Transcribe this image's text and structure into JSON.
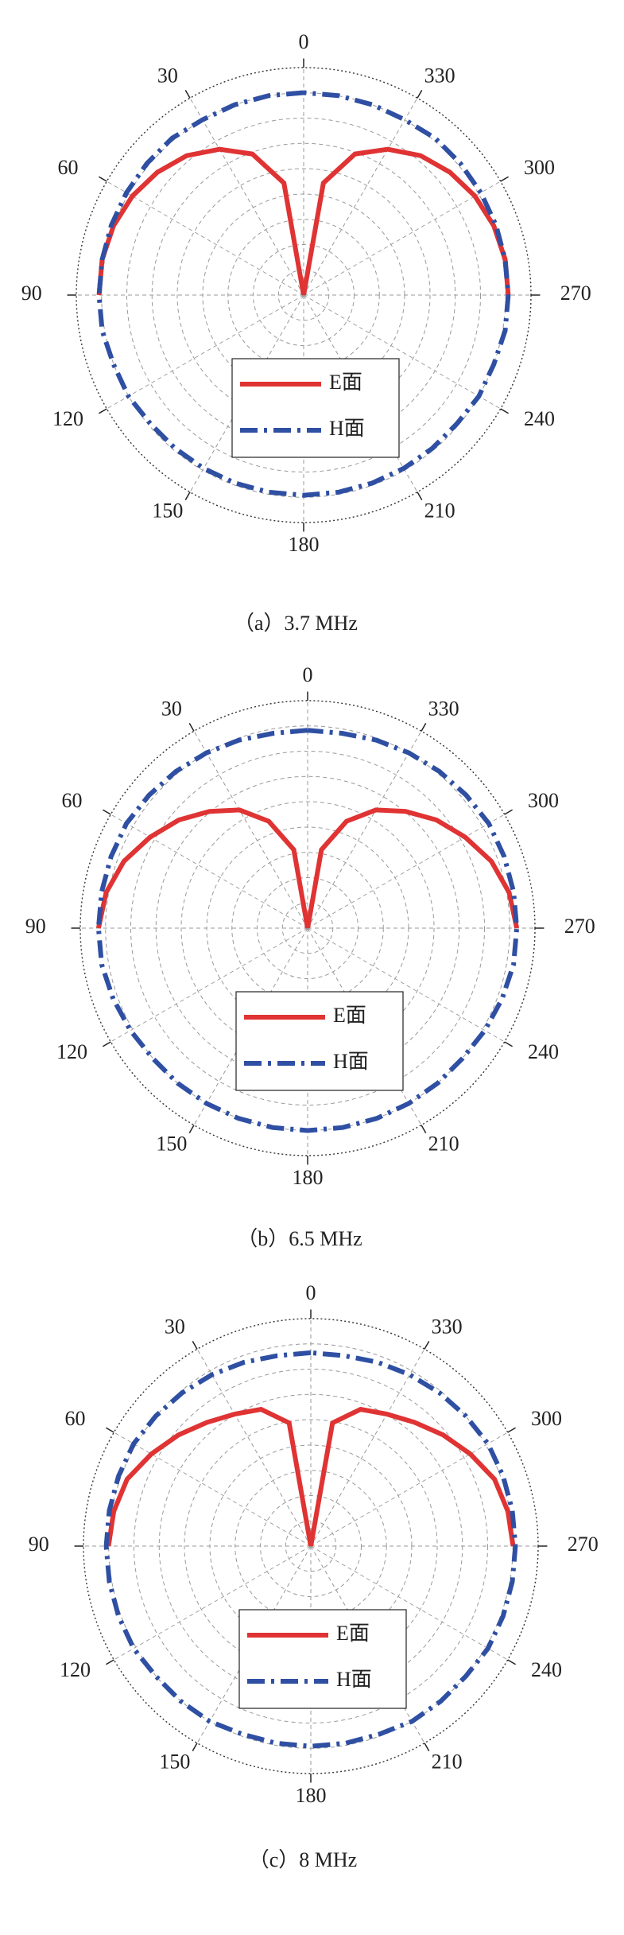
{
  "chart_data": [
    {
      "type": "polar",
      "title": "（a）3.7 MHz",
      "direction": "counterclockwise",
      "zero": "top",
      "legend": "lower center",
      "grid": true,
      "rlim": [
        0,
        1
      ],
      "rticks": [
        0.111,
        0.222,
        0.333,
        0.444,
        0.556,
        0.667,
        0.778,
        0.889,
        1
      ],
      "thetaticks": [
        0,
        30,
        60,
        90,
        120,
        150,
        180,
        210,
        240,
        270,
        300,
        330
      ],
      "x": [
        0,
        10,
        20,
        30,
        40,
        50,
        60,
        70,
        80,
        90,
        100,
        110,
        120,
        130,
        140,
        150,
        160,
        170,
        180,
        190,
        200,
        210,
        220,
        230,
        240,
        250,
        260,
        270,
        280,
        290,
        300,
        310,
        320,
        330,
        340,
        350,
        360
      ],
      "series": [
        {
          "name": "E面",
          "color": "#e03333",
          "linestyle": "solid",
          "values": [
            0,
            0.5,
            0.66,
            0.74,
            0.8,
            0.84,
            0.87,
            0.89,
            0.9,
            0.9,
            null,
            null,
            null,
            null,
            null,
            null,
            null,
            null,
            null,
            null,
            null,
            null,
            null,
            null,
            null,
            null,
            null,
            0.9,
            0.9,
            0.89,
            0.87,
            0.84,
            0.8,
            0.74,
            0.66,
            0.5,
            0
          ]
        },
        {
          "name": "H面",
          "color": "#2f4fa3",
          "linestyle": "dashdot",
          "values": [
            0.89,
            0.89,
            0.89,
            0.89,
            0.9,
            0.9,
            0.9,
            0.9,
            0.9,
            0.9,
            0.9,
            0.89,
            0.89,
            0.88,
            0.88,
            0.88,
            0.88,
            0.88,
            0.88,
            0.88,
            0.88,
            0.88,
            0.88,
            0.88,
            0.89,
            0.89,
            0.9,
            0.9,
            0.9,
            0.9,
            0.9,
            0.9,
            0.9,
            0.89,
            0.89,
            0.89,
            0.89
          ]
        }
      ]
    },
    {
      "type": "polar",
      "title": "（b）6.5 MHz",
      "direction": "counterclockwise",
      "zero": "top",
      "legend": "lower center",
      "grid": true,
      "rlim": [
        0,
        1
      ],
      "rticks": [
        0.111,
        0.222,
        0.333,
        0.444,
        0.556,
        0.667,
        0.778,
        0.889,
        1
      ],
      "thetaticks": [
        0,
        30,
        60,
        90,
        120,
        150,
        180,
        210,
        240,
        270,
        300,
        330
      ],
      "x": [
        0,
        10,
        20,
        30,
        40,
        50,
        60,
        70,
        80,
        90,
        100,
        110,
        120,
        130,
        140,
        150,
        160,
        170,
        180,
        190,
        200,
        210,
        220,
        230,
        240,
        250,
        260,
        270,
        280,
        290,
        300,
        310,
        320,
        330,
        340,
        350,
        360
      ],
      "series": [
        {
          "name": "E面",
          "color": "#e03333",
          "linestyle": "solid",
          "values": [
            0,
            0.35,
            0.5,
            0.6,
            0.67,
            0.74,
            0.8,
            0.86,
            0.9,
            0.92,
            null,
            null,
            null,
            null,
            null,
            null,
            null,
            null,
            null,
            null,
            null,
            null,
            null,
            null,
            null,
            null,
            null,
            0.92,
            0.9,
            0.86,
            0.8,
            0.74,
            0.67,
            0.6,
            0.5,
            0.35,
            0
          ]
        },
        {
          "name": "H面",
          "color": "#2f4fa3",
          "linestyle": "dashdot",
          "values": [
            0.87,
            0.87,
            0.88,
            0.89,
            0.9,
            0.91,
            0.92,
            0.92,
            0.92,
            0.92,
            0.92,
            0.91,
            0.9,
            0.89,
            0.89,
            0.89,
            0.89,
            0.89,
            0.89,
            0.89,
            0.89,
            0.89,
            0.89,
            0.89,
            0.9,
            0.91,
            0.92,
            0.92,
            0.92,
            0.92,
            0.92,
            0.91,
            0.9,
            0.89,
            0.88,
            0.87,
            0.87
          ]
        }
      ]
    },
    {
      "type": "polar",
      "title": "（c）8 MHz",
      "direction": "counterclockwise",
      "zero": "top",
      "legend": "lower center",
      "grid": true,
      "rlim": [
        0,
        1
      ],
      "rticks": [
        0.111,
        0.222,
        0.333,
        0.444,
        0.556,
        0.667,
        0.778,
        0.889,
        1
      ],
      "thetaticks": [
        0,
        30,
        60,
        90,
        120,
        150,
        180,
        210,
        240,
        270,
        300,
        330
      ],
      "x": [
        0,
        10,
        20,
        30,
        40,
        50,
        60,
        70,
        80,
        90,
        100,
        110,
        120,
        130,
        140,
        150,
        160,
        170,
        180,
        190,
        200,
        210,
        220,
        230,
        240,
        250,
        260,
        270,
        280,
        290,
        300,
        310,
        320,
        330,
        340,
        350,
        360
      ],
      "series": [
        {
          "name": "E面",
          "color": "#e03333",
          "linestyle": "solid",
          "values": [
            0,
            0.55,
            0.64,
            0.67,
            0.71,
            0.76,
            0.81,
            0.86,
            0.88,
            0.89,
            null,
            null,
            null,
            null,
            null,
            null,
            null,
            null,
            null,
            null,
            null,
            null,
            null,
            null,
            null,
            null,
            null,
            0.89,
            0.88,
            0.86,
            0.81,
            0.76,
            0.71,
            0.67,
            0.64,
            0.55,
            0
          ]
        },
        {
          "name": "H面",
          "color": "#2f4fa3",
          "linestyle": "dashdot",
          "values": [
            0.85,
            0.85,
            0.86,
            0.87,
            0.88,
            0.89,
            0.9,
            0.9,
            0.9,
            0.9,
            0.9,
            0.9,
            0.9,
            0.89,
            0.89,
            0.89,
            0.88,
            0.88,
            0.88,
            0.88,
            0.88,
            0.89,
            0.89,
            0.89,
            0.9,
            0.9,
            0.9,
            0.9,
            0.9,
            0.9,
            0.9,
            0.89,
            0.88,
            0.87,
            0.86,
            0.85,
            0.85
          ]
        }
      ]
    }
  ]
}
